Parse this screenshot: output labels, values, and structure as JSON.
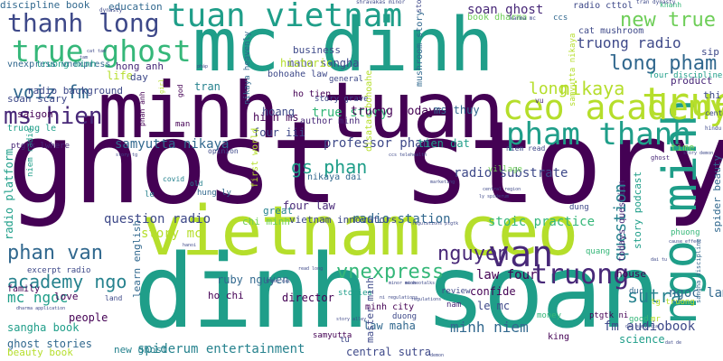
{
  "palette": {
    "dark_purple": "#440154",
    "deep_purple": "#482878",
    "indigo": "#3e4989",
    "blue": "#31688e",
    "steel_blue": "#26828e",
    "teal": "#1f9e89",
    "green": "#35b779",
    "lime": "#6ece58",
    "yellow_green": "#b5de2b",
    "yellow": "#fde725"
  },
  "words": [
    {
      "text": "ghost story",
      "color": "#440154"
    },
    {
      "text": "dinh soan",
      "color": "#1f9e89"
    },
    {
      "text": "vietnam ceo",
      "color": "#b5de2b"
    },
    {
      "text": "minh tuan",
      "color": "#440154"
    },
    {
      "text": "mc dinh",
      "color": "#1f9e89"
    },
    {
      "text": "ngo minh",
      "color": "#1f9e89"
    },
    {
      "text": "tuan vietnam",
      "color": "#1f9e89"
    },
    {
      "text": "ceo academy",
      "color": "#b5de2b"
    },
    {
      "text": "pham thanh",
      "color": "#1f9e89"
    },
    {
      "text": "true ghost",
      "color": "#35b779"
    },
    {
      "text": "thanh long",
      "color": "#3e4989"
    },
    {
      "text": "true",
      "color": "#b5de2b"
    },
    {
      "text": "van",
      "color": "#482878"
    },
    {
      "text": "truong",
      "color": "#482878"
    },
    {
      "text": "ms hien",
      "color": "#482878"
    },
    {
      "text": "new true",
      "color": "#6ece58"
    },
    {
      "text": "long pham",
      "color": "#31688e"
    },
    {
      "text": "phan van",
      "color": "#31688e"
    },
    {
      "text": "academy ngo",
      "color": "#26828e"
    },
    {
      "text": "nguyen",
      "color": "#482878"
    },
    {
      "text": "vnexpress",
      "color": "#35b779"
    },
    {
      "text": "gs phan",
      "color": "#1f9e89"
    },
    {
      "text": "voiz fm",
      "color": "#31688e"
    },
    {
      "text": "nikaya",
      "color": "#b5de2b"
    },
    {
      "text": "long",
      "color": "#b5de2b"
    },
    {
      "text": "truong radio",
      "color": "#3e4989"
    },
    {
      "text": "soan ghost",
      "color": "#482878"
    },
    {
      "text": "question",
      "color": "#26828e"
    },
    {
      "text": "sutra",
      "color": "#26828e"
    },
    {
      "text": "minh niem",
      "color": "#31688e"
    },
    {
      "text": "spiderum entertainment",
      "color": "#26828e"
    },
    {
      "text": "central sutra",
      "color": "#3e4989"
    },
    {
      "text": "fm audiobook",
      "color": "#3e4989"
    },
    {
      "text": "radio station",
      "color": "#31688e"
    },
    {
      "text": "samyutta nikaya",
      "color": "#31688e"
    },
    {
      "text": "professor phan",
      "color": "#3e4989"
    },
    {
      "text": "story mc",
      "color": "#b5de2b"
    },
    {
      "text": "mc ngoc",
      "color": "#1f9e89"
    },
    {
      "text": "ngoc lam",
      "color": "#31688e"
    },
    {
      "text": "question radio",
      "color": "#3e4989"
    },
    {
      "text": "true story",
      "color": "#35b779"
    },
    {
      "text": "truong todays",
      "color": "#440154"
    },
    {
      "text": "law four",
      "color": "#440154"
    },
    {
      "text": "radio substrate",
      "color": "#3e4989"
    },
    {
      "text": "stoic practice",
      "color": "#35b779"
    },
    {
      "text": "maha sangha",
      "color": "#3e4989"
    },
    {
      "text": "business",
      "color": "#3e4989"
    },
    {
      "text": "historic",
      "color": "#b5de2b"
    },
    {
      "text": "ms thuy",
      "color": "#31688e"
    },
    {
      "text": "science",
      "color": "#1f9e89"
    },
    {
      "text": "ghost stories",
      "color": "#31688e"
    },
    {
      "text": "sangha book",
      "color": "#1f9e89"
    },
    {
      "text": "new ghost",
      "color": "#26828e"
    },
    {
      "text": "hien ms",
      "color": "#440154"
    },
    {
      "text": "four iii",
      "color": "#3e4989"
    },
    {
      "text": "tien dat",
      "color": "#1f9e89"
    },
    {
      "text": "hoang",
      "color": "#3e4989"
    },
    {
      "text": "le mc",
      "color": "#3e4989"
    },
    {
      "text": "law maha",
      "color": "#31688e"
    },
    {
      "text": "master minh",
      "color": "#3e4989"
    },
    {
      "text": "ruby nguyen",
      "color": "#31688e"
    },
    {
      "text": "director",
      "color": "#440154"
    },
    {
      "text": "ho chi",
      "color": "#440154"
    },
    {
      "text": "chi minh",
      "color": "#6ece58"
    },
    {
      "text": "vietnam innovators",
      "color": "#3e4989"
    },
    {
      "text": "four law",
      "color": "#482878"
    },
    {
      "text": "confide",
      "color": "#440154"
    },
    {
      "text": "house",
      "color": "#440154"
    },
    {
      "text": "people",
      "color": "#440154"
    },
    {
      "text": "love",
      "color": "#440154"
    },
    {
      "text": "saigon",
      "color": "#440154"
    },
    {
      "text": "family",
      "color": "#440154"
    },
    {
      "text": "beauty book",
      "color": "#b5de2b"
    },
    {
      "text": "radio platform",
      "color": "#1f9e89"
    },
    {
      "text": "learn english",
      "color": "#31688e"
    },
    {
      "text": "great",
      "color": "#26828e"
    },
    {
      "text": "life",
      "color": "#b5de2b"
    },
    {
      "text": "day",
      "color": "#3e4989"
    },
    {
      "text": "tran",
      "color": "#26828e"
    },
    {
      "text": "radio background",
      "color": "#3e4989"
    },
    {
      "text": "soan scary",
      "color": "#3e4989"
    },
    {
      "text": "truong le",
      "color": "#1f9e89"
    },
    {
      "text": "discipline book",
      "color": "#31688e"
    },
    {
      "text": "education",
      "color": "#31688e"
    },
    {
      "text": "vnexpress vnexpress",
      "color": "#31688e"
    },
    {
      "text": "truong minh",
      "color": "#1f9e89"
    },
    {
      "text": "hong anh",
      "color": "#482878"
    },
    {
      "text": "bohoahe law",
      "color": "#3e4989"
    },
    {
      "text": "ho tien",
      "color": "#440154"
    },
    {
      "text": "author minh",
      "color": "#482878"
    },
    {
      "text": "story grave",
      "color": "#3e4989"
    },
    {
      "text": "general",
      "color": "#3e4989"
    },
    {
      "text": "mushroom story",
      "color": "#31688e"
    },
    {
      "text": "book dharma",
      "color": "#6ece58"
    },
    {
      "text": "radio cttol",
      "color": "#3e4989"
    },
    {
      "text": "cat mushroom",
      "color": "#3e4989"
    },
    {
      "text": "four discipline",
      "color": "#1f9e89"
    },
    {
      "text": "sip",
      "color": "#3e4989"
    },
    {
      "text": "product",
      "color": "#482878"
    },
    {
      "text": "thi",
      "color": "#3e4989"
    },
    {
      "text": "time",
      "color": "#6ece58"
    },
    {
      "text": "spider beauty",
      "color": "#31688e"
    },
    {
      "text": "story podcast",
      "color": "#1f9e89"
    },
    {
      "text": "todays question",
      "color": "#482878"
    },
    {
      "text": "village",
      "color": "#6ece58"
    },
    {
      "text": "phuong",
      "color": "#35b779"
    },
    {
      "text": "dung",
      "color": "#3e4989"
    },
    {
      "text": "quang",
      "color": "#35b779"
    },
    {
      "text": "review",
      "color": "#3e4989"
    },
    {
      "text": "minh city",
      "color": "#440154"
    },
    {
      "text": "stories",
      "color": "#1f9e89"
    },
    {
      "text": "nam",
      "color": "#482878"
    },
    {
      "text": "duong",
      "color": "#3e4989"
    },
    {
      "text": "king",
      "color": "#440154"
    },
    {
      "text": "money",
      "color": "#35b779"
    },
    {
      "text": "duc",
      "color": "#31688e"
    },
    {
      "text": "tg truong",
      "color": "#b5de2b"
    },
    {
      "text": "ptgtk ni",
      "color": "#440154"
    },
    {
      "text": "good",
      "color": "#35b779"
    },
    {
      "text": "mr",
      "color": "#b5de2b"
    },
    {
      "text": "excerpt radio",
      "color": "#3e4989"
    },
    {
      "text": "land",
      "color": "#3e4989"
    },
    {
      "text": "tu",
      "color": "#3e4989"
    },
    {
      "text": "samyutta",
      "color": "#440154"
    },
    {
      "text": "first world",
      "color": "#b5de2b"
    },
    {
      "text": "disatac bohoahe",
      "color": "#b5de2b"
    },
    {
      "text": "niem radio",
      "color": "#1f9e89"
    },
    {
      "text": "ptgtk lwhere",
      "color": "#482878"
    },
    {
      "text": "man",
      "color": "#440154"
    },
    {
      "text": "opinion",
      "color": "#3e4989"
    },
    {
      "text": "nikaya dai",
      "color": "#31688e"
    },
    {
      "text": "hung ly",
      "color": "#31688e"
    },
    {
      "text": "samyutta nikaya",
      "color": "#b5de2b"
    },
    {
      "text": "nikaya heavenly",
      "color": "#31688e"
    },
    {
      "text": "old",
      "color": "#26828e"
    },
    {
      "text": "phan anh",
      "color": "#440154"
    },
    {
      "text": "god",
      "color": "#440154"
    },
    {
      "text": "le",
      "color": "#26828e"
    },
    {
      "text": "covid",
      "color": "#26828e"
    },
    {
      "text": "girl",
      "color": "#b5de2b"
    },
    {
      "text": "center",
      "color": "#3e4989"
    },
    {
      "text": "vu",
      "color": "#482878"
    },
    {
      "text": "niem read",
      "color": "#3e4989"
    },
    {
      "text": "ccs",
      "color": "#31688e"
    },
    {
      "text": "khanh",
      "color": "#35b779"
    },
    {
      "text": "shravakas minor",
      "color": "#3e4989"
    },
    {
      "text": "story",
      "color": "#3e4989"
    },
    {
      "text": "tran dynasty",
      "color": "#3e4989"
    },
    {
      "text": "karma mc",
      "color": "#3e4989"
    },
    {
      "text": "dynasty",
      "color": "#3e4989"
    },
    {
      "text": "hindu",
      "color": "#3e4989"
    },
    {
      "text": "ghost",
      "color": "#482878"
    },
    {
      "text": "central region",
      "color": "#3e4989"
    },
    {
      "text": "ly spiderum",
      "color": "#3e4989"
    },
    {
      "text": "regulations ptgtk",
      "color": "#3e4989"
    },
    {
      "text": "ccs telehealth",
      "color": "#3e4989"
    },
    {
      "text": "story demon",
      "color": "#3e4989"
    },
    {
      "text": "marketing",
      "color": "#3e4989"
    },
    {
      "text": "story tg",
      "color": "#3e4989"
    },
    {
      "text": "cause effect",
      "color": "#3e4989"
    },
    {
      "text": "dai tu",
      "color": "#3e4989"
    },
    {
      "text": "regulations",
      "color": "#3e4989"
    },
    {
      "text": "dai samyutta",
      "color": "#3e4989"
    },
    {
      "text": "story alley",
      "color": "#3e4989"
    },
    {
      "text": "minor minh",
      "color": "#3e4989"
    },
    {
      "text": "dharma application",
      "color": "#3e4989"
    },
    {
      "text": "hanoi",
      "color": "#3e4989"
    },
    {
      "text": "read long",
      "color": "#3e4989"
    },
    {
      "text": "thien dai",
      "color": "#3e4989"
    },
    {
      "text": "dat de",
      "color": "#3e4989"
    },
    {
      "text": "demon",
      "color": "#3e4989"
    },
    {
      "text": "sangha discipline",
      "color": "#31688e"
    },
    {
      "text": "cat tam",
      "color": "#3e4989"
    },
    {
      "text": "tam",
      "color": "#3e4989"
    },
    {
      "text": "pháp",
      "color": "#3e4989"
    },
    {
      "text": "meomeotalks",
      "color": "#3e4989"
    },
    {
      "text": "ni regulations",
      "color": "#3e4989"
    }
  ]
}
